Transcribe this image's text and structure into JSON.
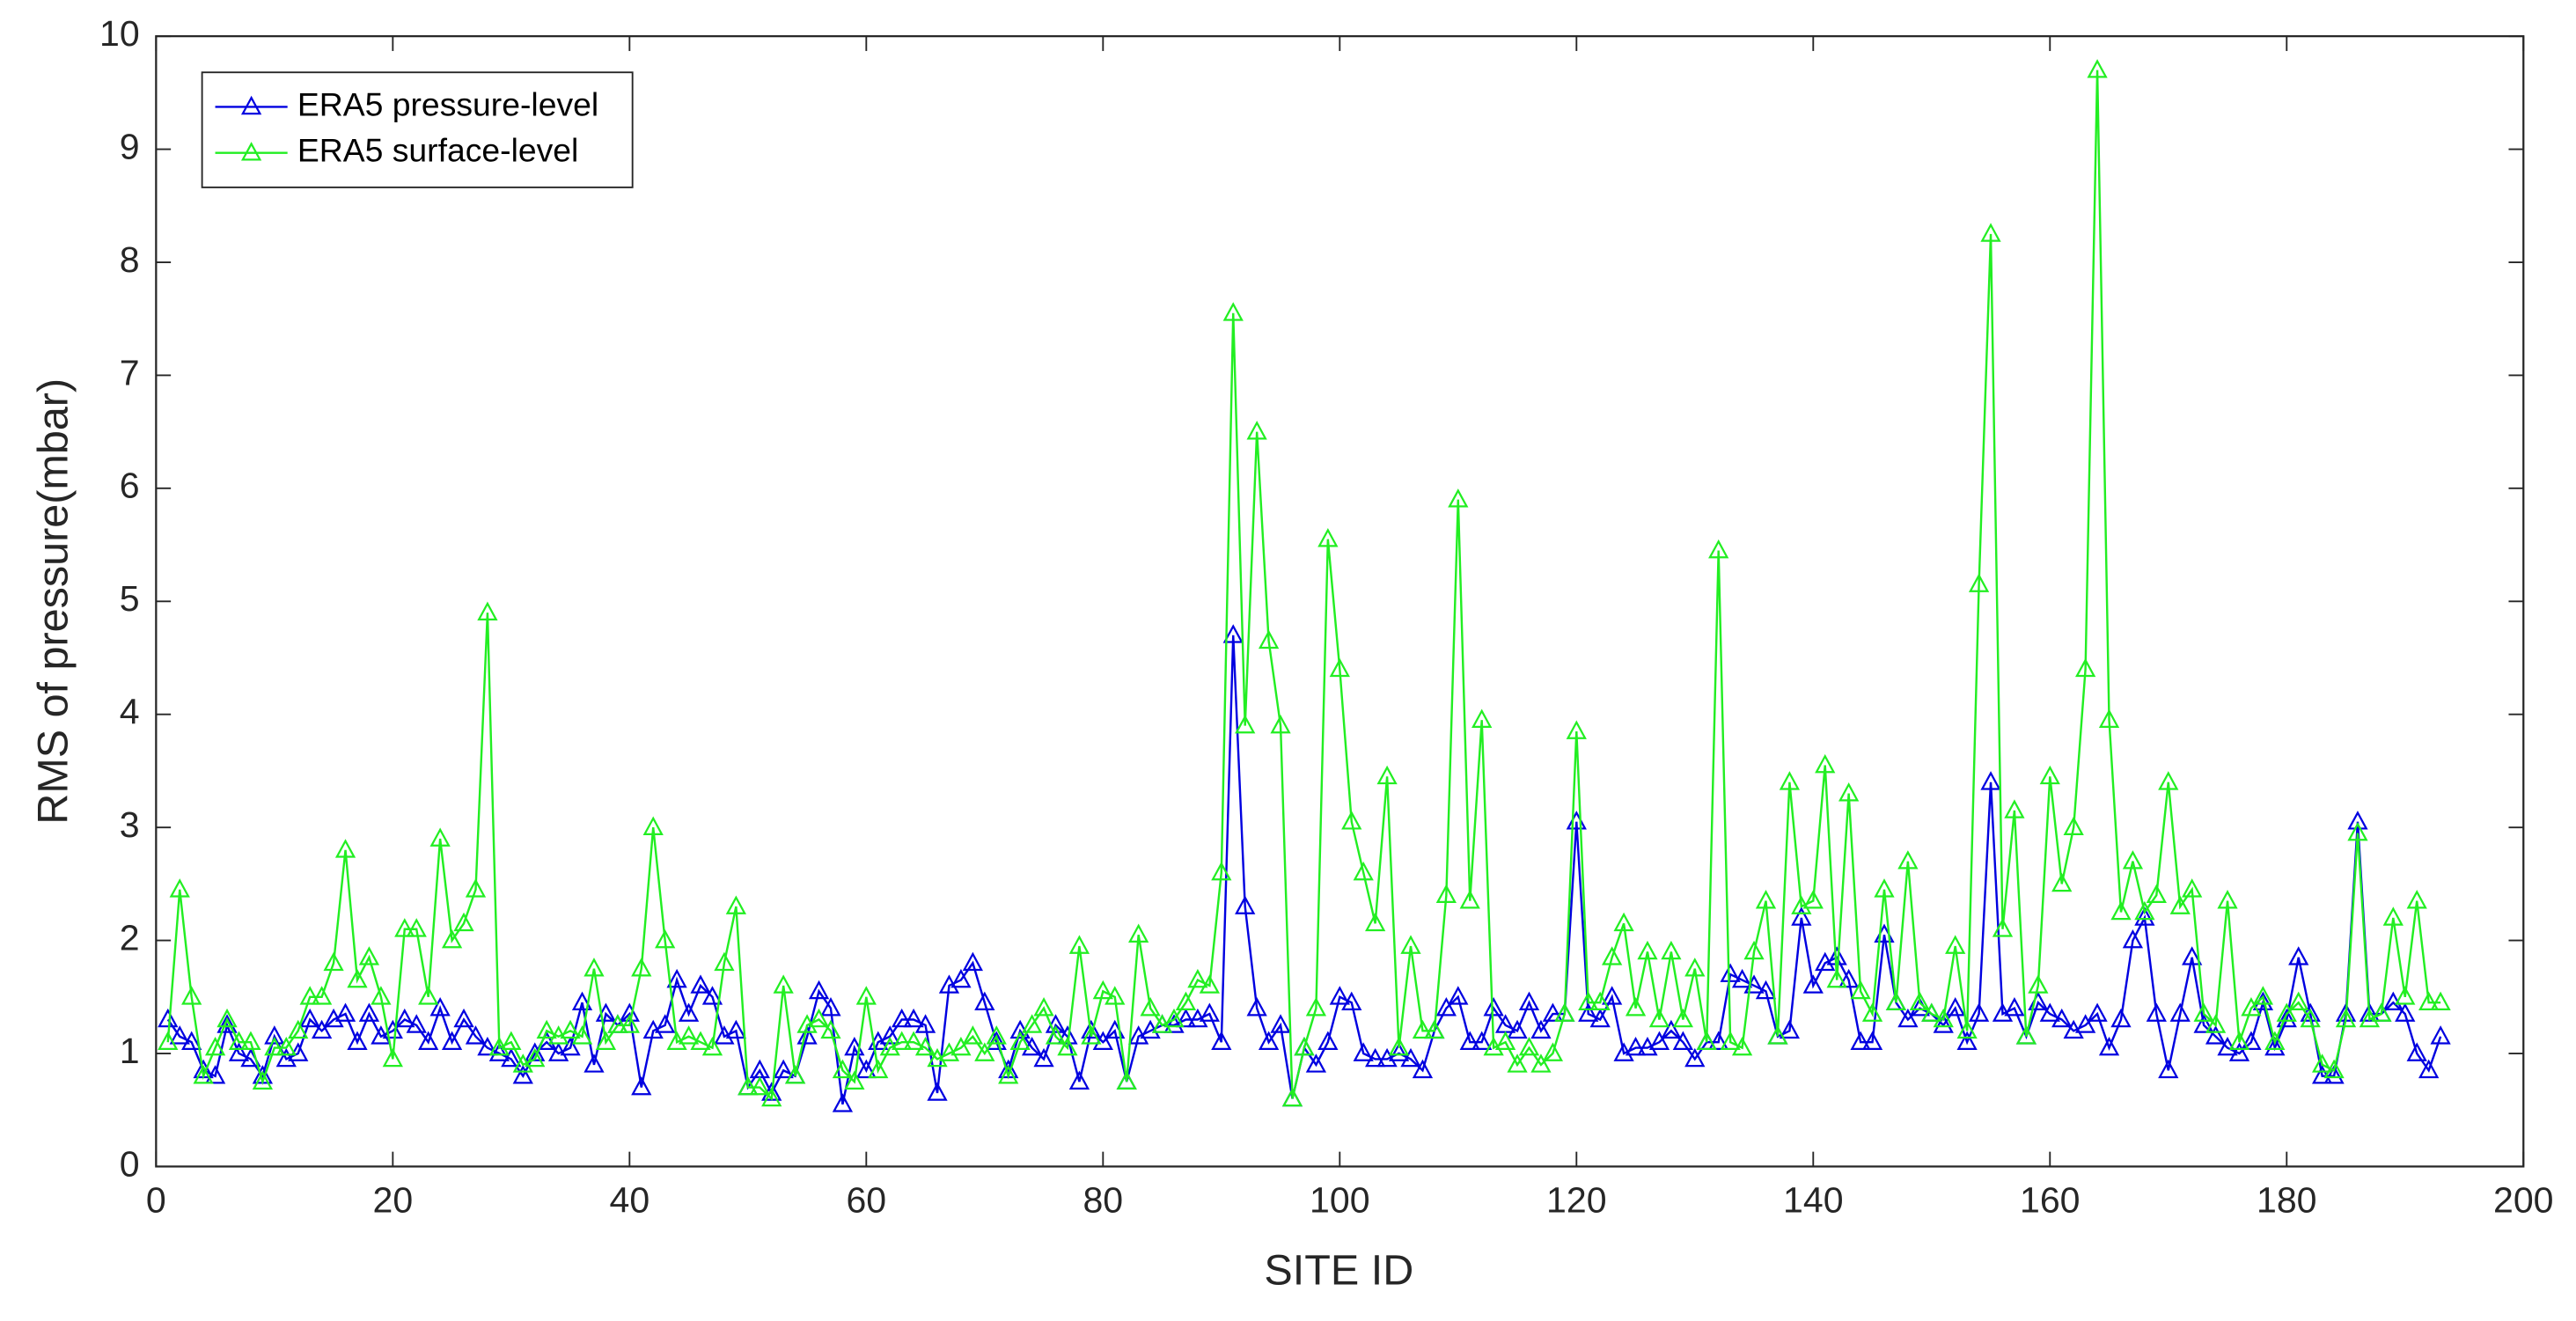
{
  "chart_data": {
    "type": "line",
    "xlabel": "SITE ID",
    "ylabel": "RMS of pressure(mbar)",
    "xlim": [
      0,
      200
    ],
    "xticks": [
      0,
      20,
      40,
      60,
      80,
      100,
      120,
      140,
      160,
      180,
      200
    ],
    "ylim": [
      0,
      10
    ],
    "yticks": [
      0,
      1,
      2,
      3,
      4,
      5,
      6,
      7,
      8,
      9,
      10
    ],
    "grid": false,
    "legend": "upper left",
    "marker": "triangle",
    "x": [
      1,
      2,
      3,
      4,
      5,
      6,
      7,
      8,
      9,
      10,
      11,
      12,
      13,
      14,
      15,
      16,
      17,
      18,
      19,
      20,
      21,
      22,
      23,
      24,
      25,
      26,
      27,
      28,
      29,
      30,
      31,
      32,
      33,
      34,
      35,
      36,
      37,
      38,
      39,
      40,
      41,
      42,
      43,
      44,
      45,
      46,
      47,
      48,
      49,
      50,
      51,
      52,
      53,
      54,
      55,
      56,
      57,
      58,
      59,
      60,
      61,
      62,
      63,
      64,
      65,
      66,
      67,
      68,
      69,
      70,
      71,
      72,
      73,
      74,
      75,
      76,
      77,
      78,
      79,
      80,
      81,
      82,
      83,
      84,
      85,
      86,
      87,
      88,
      89,
      90,
      91,
      92,
      93,
      94,
      95,
      96,
      97,
      98,
      99,
      100,
      101,
      102,
      103,
      104,
      105,
      106,
      107,
      108,
      109,
      110,
      111,
      112,
      113,
      114,
      115,
      116,
      117,
      118,
      119,
      120,
      121,
      122,
      123,
      124,
      125,
      126,
      127,
      128,
      129,
      130,
      131,
      132,
      133,
      134,
      135,
      136,
      137,
      138,
      139,
      140,
      141,
      142,
      143,
      144,
      145,
      146,
      147,
      148,
      149,
      150,
      151,
      152,
      153,
      154,
      155,
      156,
      157,
      158,
      159,
      160,
      161,
      162,
      163,
      164,
      165,
      166,
      167,
      168,
      169,
      170,
      171,
      172,
      173,
      174,
      175,
      176,
      177,
      178,
      179,
      180,
      181,
      182,
      183,
      184,
      185,
      186,
      187,
      188,
      189,
      190,
      191,
      192,
      193
    ],
    "series": [
      {
        "name": "ERA5 pressure-level",
        "color": "#0000e0",
        "values": [
          1.3,
          1.15,
          1.1,
          0.85,
          0.8,
          1.25,
          1.0,
          0.95,
          0.8,
          1.15,
          0.95,
          1.0,
          1.3,
          1.2,
          1.3,
          1.35,
          1.1,
          1.35,
          1.15,
          1.2,
          1.3,
          1.25,
          1.1,
          1.4,
          1.1,
          1.3,
          1.15,
          1.05,
          1.0,
          0.95,
          0.8,
          1.0,
          1.1,
          1.0,
          1.05,
          1.45,
          0.9,
          1.35,
          1.25,
          1.35,
          0.7,
          1.2,
          1.25,
          1.65,
          1.35,
          1.6,
          1.5,
          1.15,
          1.2,
          0.7,
          0.85,
          0.65,
          0.85,
          0.8,
          1.15,
          1.55,
          1.4,
          0.55,
          1.05,
          0.85,
          1.1,
          1.15,
          1.3,
          1.3,
          1.25,
          0.65,
          1.6,
          1.65,
          1.8,
          1.45,
          1.1,
          0.85,
          1.2,
          1.05,
          0.95,
          1.25,
          1.15,
          0.75,
          1.2,
          1.1,
          1.2,
          0.75,
          1.15,
          1.2,
          1.25,
          1.25,
          1.3,
          1.3,
          1.35,
          1.1,
          4.7,
          2.3,
          1.4,
          1.1,
          1.25,
          0.6,
          1.05,
          0.9,
          1.1,
          1.5,
          1.45,
          1.0,
          0.95,
          0.95,
          1.0,
          0.95,
          0.85,
          1.2,
          1.4,
          1.5,
          1.1,
          1.1,
          1.4,
          1.25,
          1.2,
          1.45,
          1.2,
          1.35,
          1.35,
          3.05,
          1.35,
          1.3,
          1.5,
          1.0,
          1.05,
          1.05,
          1.1,
          1.2,
          1.1,
          0.95,
          1.1,
          1.1,
          1.7,
          1.65,
          1.6,
          1.55,
          1.15,
          1.2,
          2.2,
          1.6,
          1.8,
          1.85,
          1.65,
          1.1,
          1.1,
          2.05,
          1.45,
          1.3,
          1.4,
          1.35,
          1.25,
          1.4,
          1.1,
          1.35,
          3.4,
          1.35,
          1.4,
          1.15,
          1.45,
          1.35,
          1.3,
          1.2,
          1.25,
          1.35,
          1.05,
          1.3,
          2.0,
          2.2,
          1.35,
          0.85,
          1.35,
          1.85,
          1.25,
          1.15,
          1.05,
          1.0,
          1.1,
          1.45,
          1.05,
          1.3,
          1.85,
          1.35,
          0.8,
          0.8,
          1.35,
          3.05,
          1.35,
          1.35,
          1.45,
          1.35,
          1.0,
          0.85,
          1.15
        ]
      },
      {
        "name": "ERA5 surface-level",
        "color": "#22ee22",
        "values": [
          1.1,
          2.45,
          1.5,
          0.8,
          1.05,
          1.3,
          1.1,
          1.1,
          0.75,
          1.05,
          1.05,
          1.2,
          1.5,
          1.5,
          1.8,
          2.8,
          1.65,
          1.85,
          1.5,
          0.95,
          2.1,
          2.1,
          1.5,
          2.9,
          2.0,
          2.15,
          2.45,
          4.9,
          1.05,
          1.1,
          0.9,
          0.95,
          1.2,
          1.15,
          1.2,
          1.15,
          1.75,
          1.1,
          1.25,
          1.25,
          1.75,
          3.0,
          2.0,
          1.1,
          1.15,
          1.1,
          1.05,
          1.8,
          2.3,
          0.7,
          0.7,
          0.6,
          1.6,
          0.8,
          1.25,
          1.3,
          1.2,
          0.85,
          0.75,
          1.5,
          0.85,
          1.05,
          1.1,
          1.1,
          1.05,
          0.95,
          1.0,
          1.05,
          1.15,
          1.0,
          1.15,
          0.8,
          1.1,
          1.25,
          1.4,
          1.15,
          1.05,
          1.95,
          1.15,
          1.55,
          1.5,
          0.75,
          2.05,
          1.4,
          1.25,
          1.3,
          1.45,
          1.65,
          1.6,
          2.6,
          7.55,
          3.9,
          6.5,
          4.65,
          3.9,
          0.6,
          1.05,
          1.4,
          5.55,
          4.4,
          3.05,
          2.6,
          2.15,
          3.45,
          1.05,
          1.95,
          1.2,
          1.2,
          2.4,
          5.9,
          2.35,
          3.95,
          1.05,
          1.1,
          0.9,
          1.05,
          0.9,
          1.0,
          1.35,
          3.85,
          1.45,
          1.45,
          1.85,
          2.15,
          1.4,
          1.9,
          1.3,
          1.9,
          1.3,
          1.75,
          1.1,
          5.45,
          1.1,
          1.05,
          1.9,
          2.35,
          1.15,
          3.4,
          2.3,
          2.35,
          3.55,
          1.65,
          3.3,
          1.55,
          1.35,
          2.45,
          1.45,
          2.7,
          1.45,
          1.35,
          1.3,
          1.95,
          1.2,
          5.15,
          8.25,
          2.1,
          3.15,
          1.15,
          1.6,
          3.45,
          2.5,
          3.0,
          4.4,
          9.7,
          3.95,
          2.25,
          2.7,
          2.25,
          2.4,
          3.4,
          2.3,
          2.45,
          1.35,
          1.25,
          2.35,
          1.1,
          1.4,
          1.5,
          1.1,
          1.35,
          1.45,
          1.3,
          0.9,
          0.85,
          1.3,
          2.95,
          1.3,
          1.35,
          2.2,
          1.5,
          2.35,
          1.45,
          1.45
        ]
      }
    ]
  }
}
